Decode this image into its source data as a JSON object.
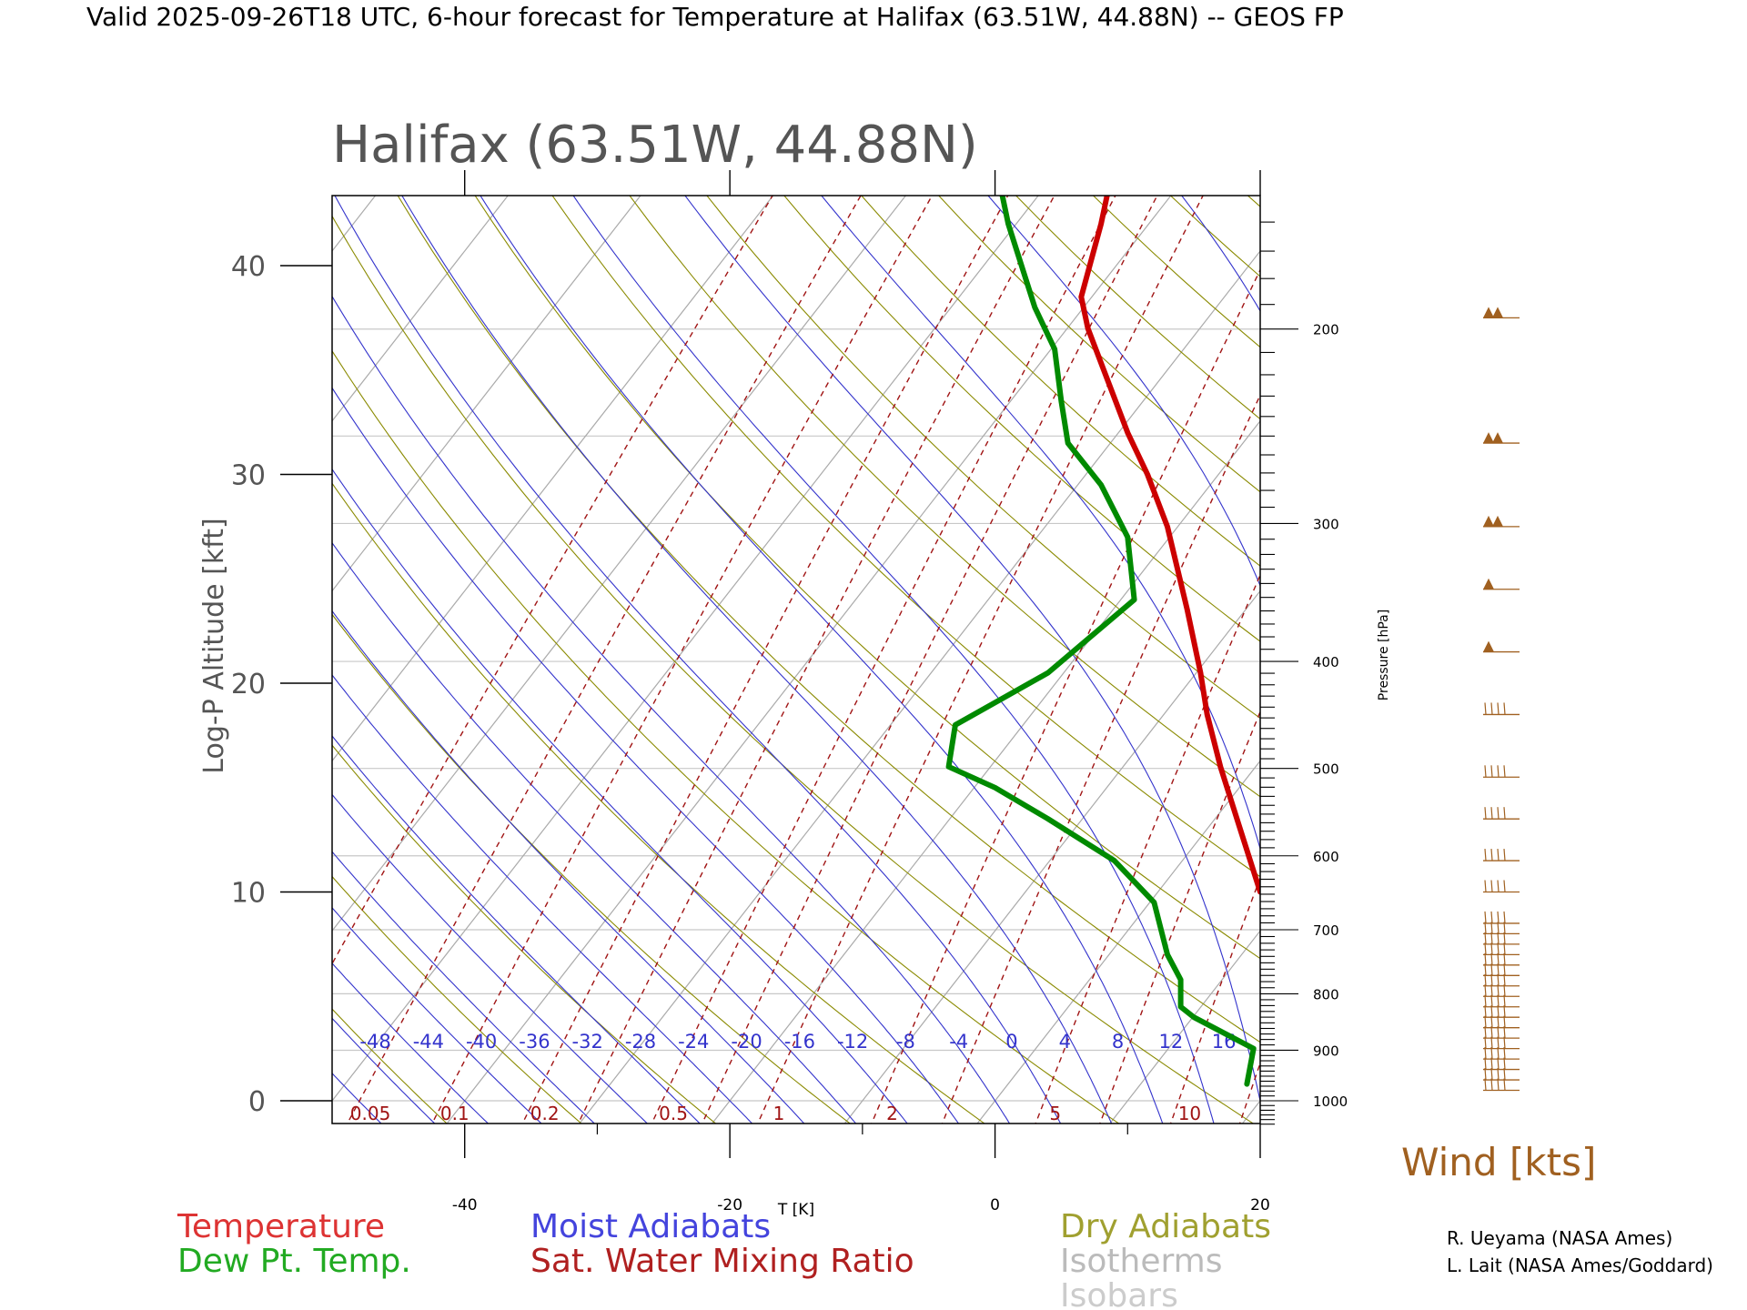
{
  "page_title": "Valid 2025-09-26T18 UTC, 6-hour forecast for Temperature at Halifax (63.51W, 44.88N) -- GEOS FP",
  "chart_data": {
    "type": "line",
    "title": "Halifax (63.51W, 44.88N)",
    "xlabel": "T [K]",
    "ylabel": "Log-P Altitude [kft]",
    "y2label": "Pressure [hPa]",
    "xlim": [
      -50,
      20
    ],
    "ylim": [
      -1,
      43.5
    ],
    "x_ticks": [
      "-40",
      "-20",
      "0",
      "20"
    ],
    "y_ticks": [
      "0",
      "10",
      "20",
      "30",
      "40"
    ],
    "pressure_ticks": [
      "200",
      "300",
      "400",
      "500",
      "600",
      "700",
      "800",
      "900",
      "1000"
    ],
    "grid": true,
    "series": [
      {
        "name": "Temperature",
        "color": "#cc0000",
        "points": [
          [
            20,
            10
          ],
          [
            18.5,
            13
          ],
          [
            17,
            16
          ],
          [
            16,
            18.5
          ],
          [
            15.5,
            20.5
          ],
          [
            14.5,
            23.5
          ],
          [
            13,
            27.5
          ],
          [
            11.5,
            30
          ],
          [
            10,
            32
          ],
          [
            8.5,
            34.5
          ],
          [
            7,
            37
          ],
          [
            6.5,
            38.5
          ],
          [
            8,
            42
          ],
          [
            8.5,
            43.5
          ]
        ]
      },
      {
        "name": "Dew Pt. Temp.",
        "color": "#008a00",
        "points": [
          [
            19,
            0.8
          ],
          [
            19.5,
            2.5
          ],
          [
            18,
            3
          ],
          [
            15,
            4
          ],
          [
            14,
            4.5
          ],
          [
            14,
            5.8
          ],
          [
            13,
            7
          ],
          [
            12,
            9.5
          ],
          [
            9,
            11.5
          ],
          [
            4,
            13.5
          ],
          [
            0,
            15
          ],
          [
            -3.5,
            16
          ],
          [
            -3,
            18
          ],
          [
            4,
            20.5
          ],
          [
            10.5,
            24
          ],
          [
            10,
            27
          ],
          [
            8,
            29.5
          ],
          [
            5.5,
            31.5
          ],
          [
            5,
            33.5
          ],
          [
            4.5,
            36
          ],
          [
            3,
            38
          ],
          [
            1,
            42
          ],
          [
            0.5,
            43.5
          ]
        ]
      }
    ],
    "moist_adiabat_labels": [
      "-48",
      "-44",
      "-40",
      "-36",
      "-32",
      "-28",
      "-24",
      "-20",
      "-16",
      "-12",
      "-8",
      "-4",
      "0",
      "4",
      "8",
      "12",
      "16"
    ],
    "mixing_ratio_labels": [
      "0.05",
      "0.1",
      "0.2",
      "0.5",
      "1",
      "2",
      "5",
      "10"
    ],
    "wind_label": "Wind [kts]",
    "wind_barb_altitudes_kft": [
      0.5,
      1,
      1.5,
      2,
      2.5,
      3,
      3.5,
      4,
      4.5,
      5,
      5.5,
      6,
      6.5,
      7,
      7.5,
      8,
      8.5,
      10,
      11.5,
      13.5,
      15.5,
      18.5,
      21.5,
      24.5,
      27.5,
      31.5,
      37.5
    ]
  },
  "legend_left": [
    "Temperature",
    "Dew Pt. Temp."
  ],
  "legend_middle": [
    "Moist Adiabats",
    "Sat. Water Mixing Ratio"
  ],
  "legend_right": [
    "Dry Adiabats",
    "Isotherms",
    "Isobars"
  ],
  "credits": [
    "R. Ueyama (NASA Ames)",
    "L. Lait (NASA Ames/Goddard)"
  ],
  "colors": {
    "temperature": "#cc0000",
    "dewpoint": "#008a00",
    "moist_adiabats": "#3333cc",
    "mixing_ratio": "#a01414",
    "dry_adiabats": "#8a8a00",
    "isotherms": "#aaaaaa",
    "isobars": "#c8c8c8",
    "wind": "#a06020"
  }
}
